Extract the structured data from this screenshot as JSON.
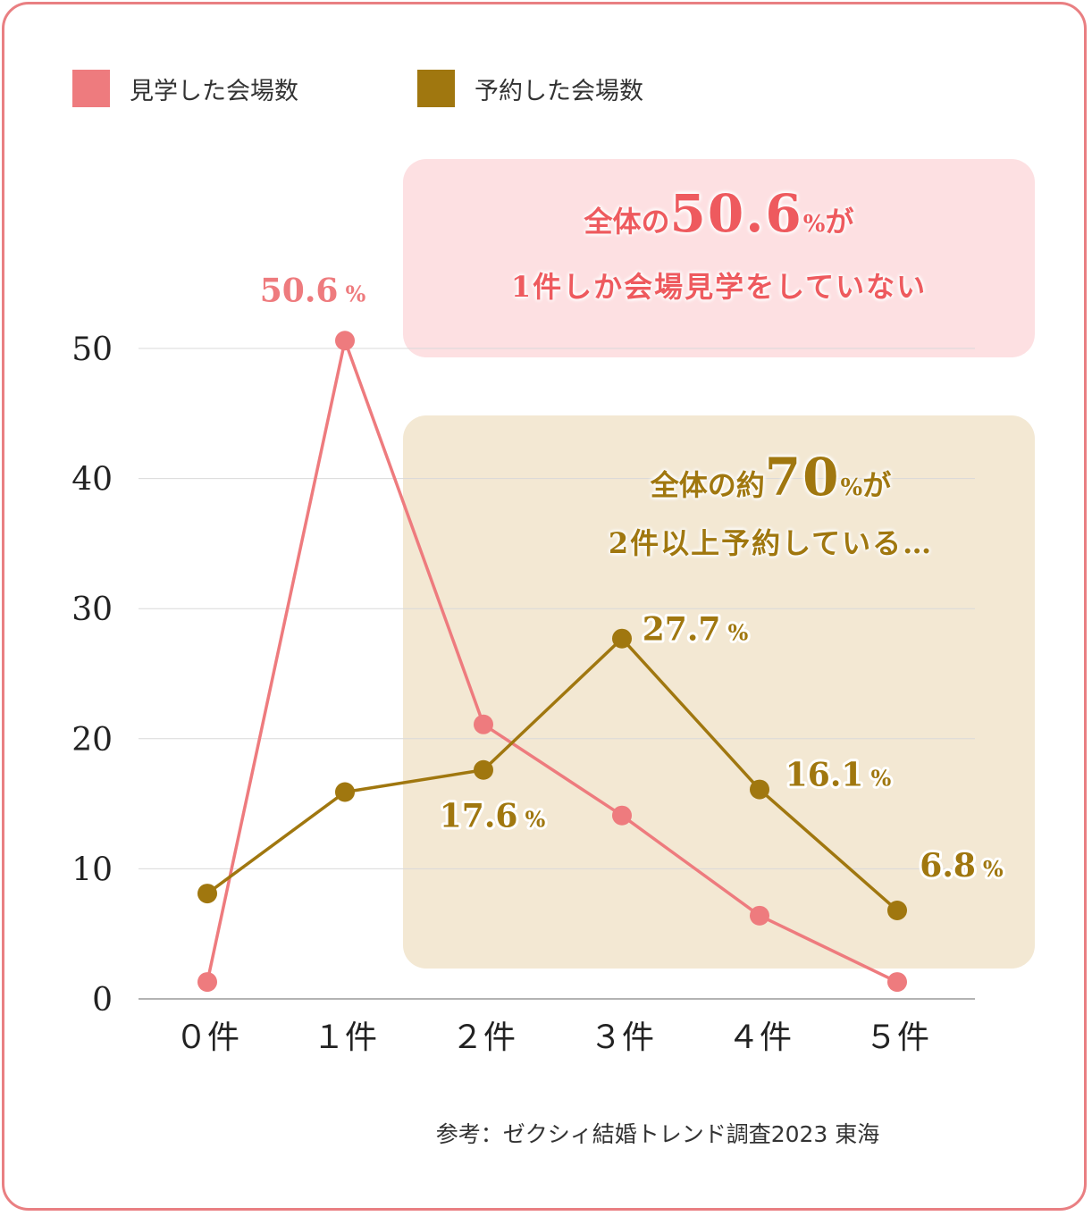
{
  "legend": {
    "visited_label": "見学した会場数",
    "booked_label": "予約した会場数"
  },
  "colors": {
    "visited": "#ee7b7e",
    "booked": "#a0770f",
    "visited_box": "#fde0e2",
    "booked_box": "#f3e8d3",
    "border": "#e97f82"
  },
  "callouts": {
    "pink": {
      "prefix": "全体の",
      "number": "50.6",
      "unit": "%",
      "suffix": "が",
      "line2": "1件しか会場見学をしていない"
    },
    "gold": {
      "prefix": "全体の約",
      "number": "70",
      "unit": "%",
      "suffix": "が",
      "line2": "2件以上予約している…"
    }
  },
  "source": "参考：ゼクシィ結婚トレンド調査2023 東海",
  "chart_data": {
    "type": "line",
    "categories": [
      "０件",
      "１件",
      "２件",
      "３件",
      "４件",
      "５件"
    ],
    "ylim": [
      0,
      50
    ],
    "yticks": [
      "0",
      "10",
      "20",
      "30",
      "40",
      "50"
    ],
    "grid": true,
    "legend_position": "top-left",
    "series": [
      {
        "name": "見学した会場数",
        "values": [
          1.3,
          50.6,
          21.1,
          14.1,
          6.4,
          1.3
        ],
        "labels": [
          "",
          "50.6",
          "",
          "",
          "",
          ""
        ]
      },
      {
        "name": "予約した会場数",
        "values": [
          8.1,
          15.9,
          17.6,
          27.7,
          16.1,
          6.8
        ],
        "labels": [
          "",
          "",
          "17.6",
          "27.7",
          "16.1",
          "6.8"
        ]
      }
    ],
    "label_unit": "%"
  }
}
